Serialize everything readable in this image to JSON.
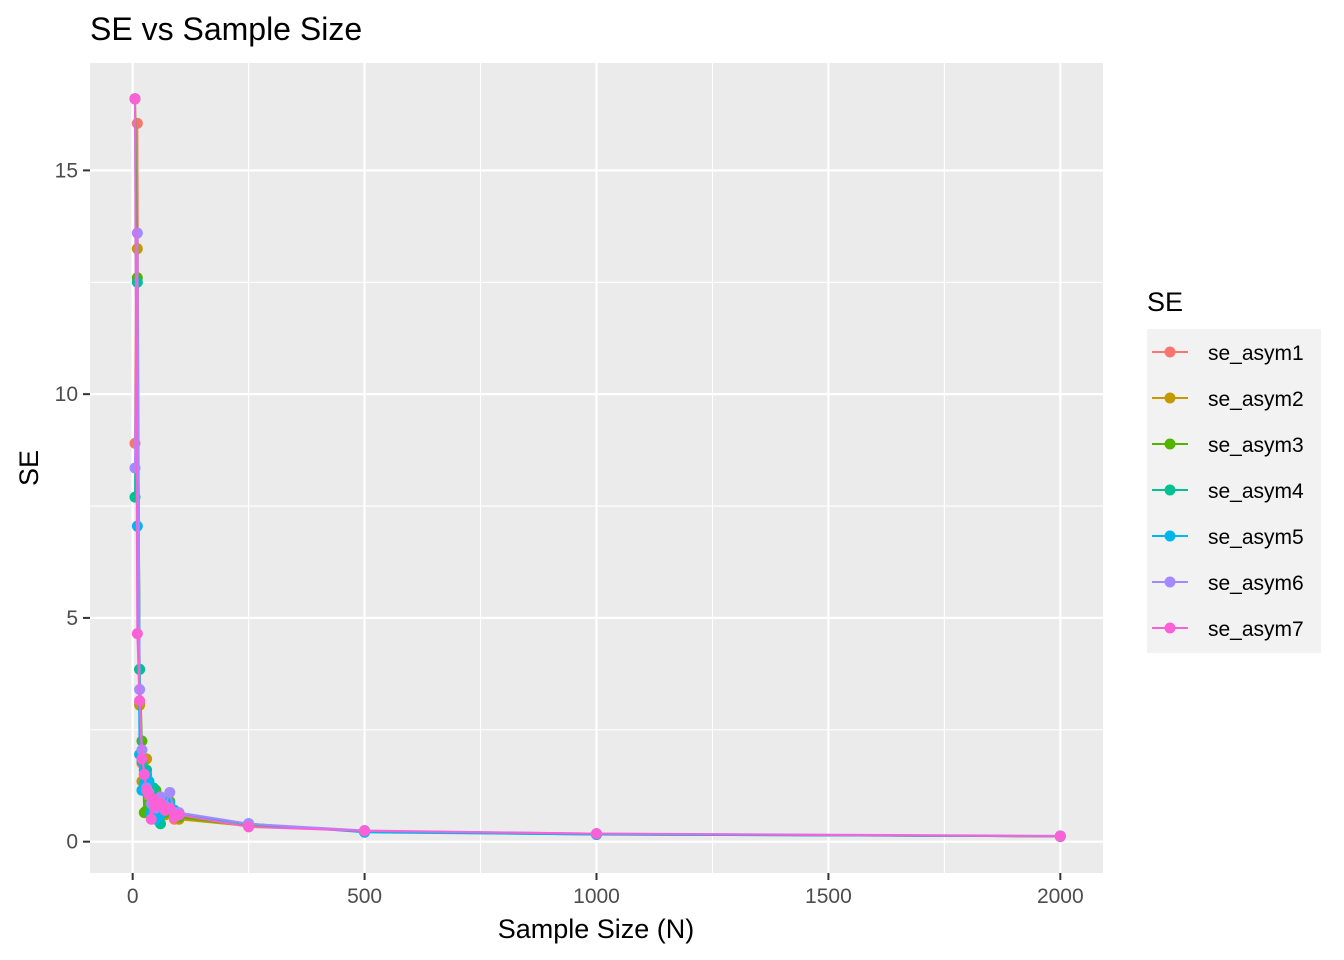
{
  "chart_data": {
    "type": "line",
    "title": "SE vs Sample Size",
    "xlabel": "Sample Size (N)",
    "ylabel": "SE",
    "xlim": [
      -92,
      2092
    ],
    "ylim": [
      -0.7,
      17.4
    ],
    "x_ticks": [
      0,
      500,
      1000,
      1500,
      2000
    ],
    "y_ticks": [
      0,
      5,
      10,
      15
    ],
    "x_tick_labels": [
      "0",
      "500",
      "1000",
      "1500",
      "2000"
    ],
    "y_tick_labels": [
      "0",
      "5",
      "10",
      "15"
    ],
    "grid": true,
    "legend_title": "SE",
    "legend_position": "right",
    "x": [
      5,
      10,
      15,
      20,
      25,
      30,
      35,
      40,
      45,
      50,
      60,
      70,
      80,
      90,
      100,
      250,
      500,
      1000,
      2000
    ],
    "series": [
      {
        "name": "se_asym1",
        "color": "#F8766D",
        "values": [
          8.9,
          16.05,
          3.1,
          1.75,
          1.8,
          1.15,
          1.05,
          0.95,
          0.85,
          0.9,
          0.8,
          0.75,
          0.7,
          0.5,
          0.55,
          0.35,
          0.24,
          0.17,
          0.12
        ]
      },
      {
        "name": "se_asym2",
        "color": "#C49A00",
        "values": [
          16.6,
          13.25,
          3.05,
          1.35,
          1.85,
          1.85,
          1.2,
          0.9,
          0.75,
          0.95,
          0.65,
          0.6,
          0.8,
          0.6,
          0.5,
          0.35,
          0.24,
          0.17,
          0.12
        ]
      },
      {
        "name": "se_asym3",
        "color": "#53B400",
        "values": [
          16.6,
          12.6,
          3.85,
          2.25,
          0.65,
          0.7,
          0.85,
          1.1,
          0.7,
          1.15,
          0.6,
          0.65,
          0.9,
          0.7,
          0.55,
          0.35,
          0.24,
          0.17,
          0.12
        ]
      },
      {
        "name": "se_asym4",
        "color": "#00C094",
        "values": [
          7.7,
          12.5,
          3.85,
          1.8,
          1.6,
          1.6,
          1.3,
          0.7,
          1.2,
          0.8,
          0.4,
          0.9,
          0.75,
          0.65,
          0.6,
          0.4,
          0.22,
          0.16,
          0.12
        ]
      },
      {
        "name": "se_asym5",
        "color": "#00B6EB",
        "values": [
          16.6,
          7.05,
          1.95,
          1.15,
          1.3,
          1.5,
          1.35,
          0.6,
          0.8,
          0.5,
          0.6,
          0.75,
          0.85,
          0.7,
          0.6,
          0.4,
          0.21,
          0.16,
          0.12
        ]
      },
      {
        "name": "se_asym6",
        "color": "#A58AFF",
        "values": [
          8.35,
          13.6,
          3.4,
          2.05,
          1.5,
          1.2,
          1.1,
          0.85,
          0.9,
          0.75,
          1.0,
          0.8,
          1.1,
          0.65,
          0.65,
          0.4,
          0.25,
          0.18,
          0.13
        ]
      },
      {
        "name": "se_asym7",
        "color": "#FB61D7",
        "values": [
          16.6,
          4.65,
          3.15,
          1.85,
          1.5,
          1.15,
          1.05,
          0.5,
          0.95,
          0.8,
          0.85,
          0.7,
          0.75,
          0.55,
          0.6,
          0.33,
          0.24,
          0.18,
          0.12
        ]
      }
    ]
  }
}
